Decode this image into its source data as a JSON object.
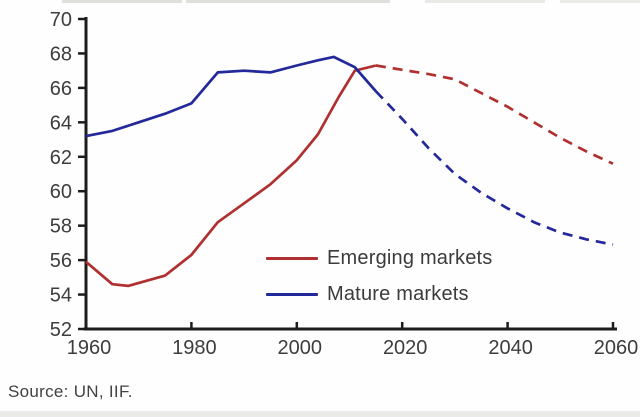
{
  "source_note": "Source: UN, IIF.",
  "legend": {
    "items": [
      {
        "label": "Emerging markets",
        "color": "#b03030"
      },
      {
        "label": "Mature markets",
        "color": "#23289a"
      }
    ]
  },
  "artifacts": {
    "cropped_title_remnant_colors": [
      "#e0e0dc",
      "#dedeDa",
      "#e8e8e4",
      "#eaeae6"
    ],
    "bottom_strip_color": "#ebebe7"
  },
  "chart_data": {
    "type": "line",
    "title": "",
    "xlabel": "",
    "ylabel": "",
    "xlim": [
      1960,
      2060
    ],
    "ylim": [
      52,
      70
    ],
    "x_ticks": [
      1960,
      1980,
      2000,
      2020,
      2040,
      2060
    ],
    "y_ticks": [
      52,
      54,
      56,
      58,
      60,
      62,
      64,
      66,
      68,
      70
    ],
    "grid": false,
    "axis_color": "#1c1c1c",
    "tick_label_color": "#3d3d3d",
    "legend_position": "inside lower-right of plot",
    "projection_note": "lines become dashed (projected values) after ~2015",
    "series": [
      {
        "name": "Emerging markets",
        "color": "#b03030",
        "solid_until_x": 2015,
        "x": [
          1960,
          1965,
          1968,
          1975,
          1980,
          1985,
          1990,
          1995,
          2000,
          2004,
          2008,
          2011,
          2015,
          2020,
          2025,
          2030,
          2035,
          2040,
          2045,
          2050,
          2055,
          2060
        ],
        "y": [
          55.9,
          54.6,
          54.5,
          55.1,
          56.3,
          58.2,
          59.3,
          60.4,
          61.8,
          63.3,
          65.5,
          67.0,
          67.3,
          67.05,
          66.8,
          66.5,
          65.7,
          64.9,
          64.0,
          63.1,
          62.3,
          61.6
        ]
      },
      {
        "name": "Mature markets",
        "color": "#23289a",
        "solid_until_x": 2015,
        "x": [
          1960,
          1965,
          1970,
          1975,
          1980,
          1985,
          1990,
          1995,
          2000,
          2004,
          2007,
          2011,
          2015,
          2020,
          2025,
          2030,
          2035,
          2040,
          2045,
          2050,
          2055,
          2060
        ],
        "y": [
          63.2,
          63.5,
          64.0,
          64.5,
          65.1,
          66.9,
          67.0,
          66.9,
          67.3,
          67.6,
          67.8,
          67.2,
          65.8,
          64.2,
          62.5,
          61.0,
          59.9,
          59.0,
          58.2,
          57.6,
          57.2,
          56.9
        ]
      }
    ]
  }
}
